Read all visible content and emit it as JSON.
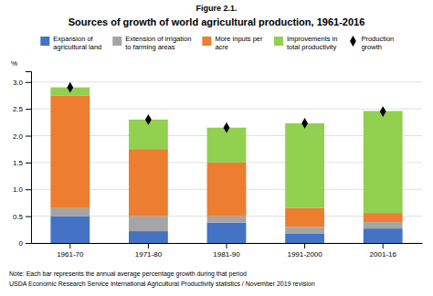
{
  "chart_data": {
    "type": "bar",
    "stacked": true,
    "title": "Sources of growth of world agricultural production, 1961-2016",
    "annotations": [
      "Figure 2.1.",
      "Note: Each bar represents the annual average percentage growth during that period",
      "USDA Economic Research Service International Agricultural Productivity statistics / November 2019 revision"
    ],
    "ylabel": "%",
    "categories": [
      "1961-70",
      "1971-80",
      "1981-90",
      "1991-2000",
      "2001-16"
    ],
    "series": [
      {
        "name": "Expansion of\nagricultural land",
        "color": "#4472C4",
        "values": [
          0.5,
          0.22,
          0.38,
          0.18,
          0.27
        ]
      },
      {
        "name": "Extension of irrigation\nto farming areas",
        "color": "#A5A5A5",
        "values": [
          0.15,
          0.28,
          0.12,
          0.12,
          0.12
        ]
      },
      {
        "name": "More inputs per\nacre",
        "color": "#ED7D31",
        "values": [
          2.1,
          1.25,
          1.0,
          0.35,
          0.17
        ]
      },
      {
        "name": "Improvements in\ntotal productivity",
        "color": "#92D050",
        "values": [
          0.15,
          0.55,
          0.65,
          1.58,
          1.9
        ]
      },
      {
        "name": "Production\ngrowth",
        "type": "scatter",
        "marker": "diamond",
        "color": "black",
        "values": [
          2.9,
          2.3,
          2.15,
          2.23,
          2.45
        ]
      }
    ],
    "ylim": [
      0,
      3.2
    ],
    "yticks": [
      0,
      0.5,
      {
        "value": 1.0,
        "label": "1.0"
      },
      1.5,
      {
        "value": 2.0,
        "label": "2.0"
      },
      2.5,
      {
        "value": 3.0,
        "label": "3.0"
      }
    ],
    "grid": true
  }
}
